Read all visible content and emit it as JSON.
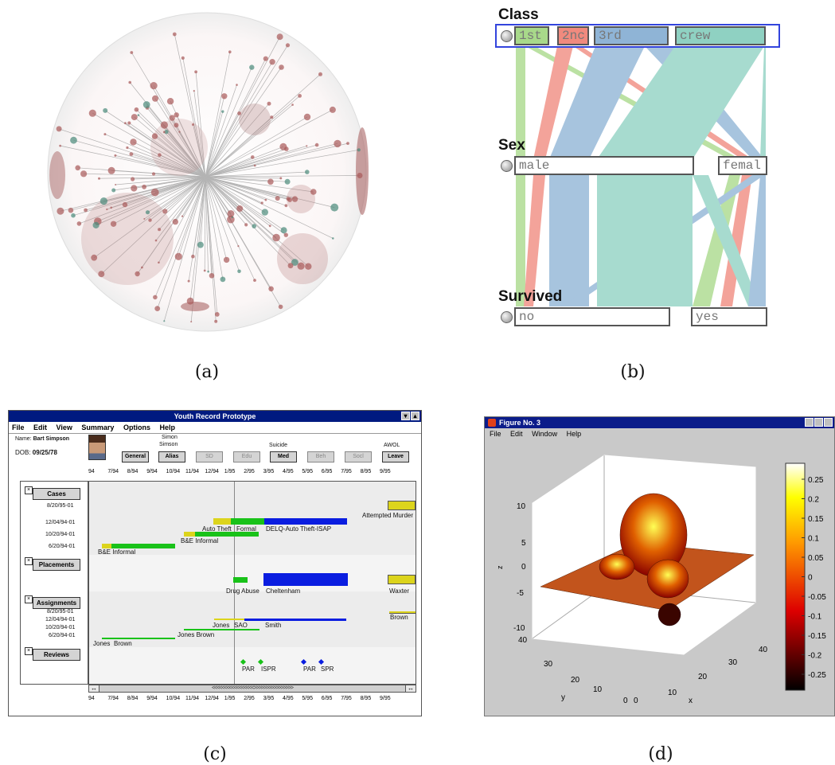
{
  "captions": {
    "a": "(a)",
    "b": "(b)",
    "c": "(c)",
    "d": "(d)"
  },
  "parallel_sets": {
    "dimensions": [
      {
        "name": "Class",
        "categories": [
          "1st",
          "2nc",
          "3rd",
          "crew"
        ]
      },
      {
        "name": "Sex",
        "categories": [
          "male",
          "femal"
        ]
      },
      {
        "name": "Survived",
        "categories": [
          "no",
          "yes"
        ]
      }
    ],
    "colors": {
      "1st": "#a8d98a",
      "2nc": "#f08a7e",
      "3rd": "#8fb4d6",
      "crew": "#8fd1c2"
    }
  },
  "youth_record": {
    "title": "Youth Record Prototype",
    "menu": [
      "File",
      "Edit",
      "View",
      "Summary",
      "Options",
      "Help"
    ],
    "name_label": "Name:",
    "name_value": "Bart Simpson",
    "dob_label": "DOB:",
    "dob_value": "09/25/78",
    "alias_text": [
      "Simon",
      "Simson"
    ],
    "notes": {
      "suicide": "Suicide",
      "awol": "AWOL"
    },
    "buttons": [
      {
        "label": "General",
        "enabled": true
      },
      {
        "label": "Alias",
        "enabled": true
      },
      {
        "label": "SD",
        "enabled": false
      },
      {
        "label": "Edu",
        "enabled": false
      },
      {
        "label": "Med",
        "enabled": true
      },
      {
        "label": "Beh",
        "enabled": false
      },
      {
        "label": "Socl",
        "enabled": false
      },
      {
        "label": "Leave",
        "enabled": true
      }
    ],
    "timeline_ticks": [
      "94",
      "7/94",
      "8/94",
      "9/94",
      "10/94",
      "11/94",
      "12/94",
      "1/95",
      "2/95",
      "3/95",
      "4/95",
      "5/95",
      "6/95",
      "7/95",
      "8/95",
      "9/95"
    ],
    "sections": {
      "cases": "Cases",
      "placements": "Placements",
      "assignments": "Assignments",
      "reviews": "Reviews"
    },
    "case_dates": [
      "8/20/95-01",
      "12/04/94-01",
      "10/20/94-01",
      "6/20/94-01"
    ],
    "assignment_dates": [
      "8/20/95-01",
      "12/04/94-01",
      "10/20/94-01",
      "6/20/94-01"
    ],
    "case_labels": {
      "attempted_murder": "Attempted Murder",
      "auto_theft": "Auto Theft",
      "formal": "Formal",
      "delq": "DELQ-Auto Theft-ISAP",
      "be_informal_1": "B&E Informal",
      "be_informal_2": "B&E Informal"
    },
    "placement_labels": {
      "drug_abuse": "Drug Abuse",
      "cheltenham": "Cheltenham",
      "waxter": "Waxter"
    },
    "assignment_labels": {
      "brown_1": "Brown",
      "jones_1": "Jones",
      "sao": "SAO",
      "smith": "Smith",
      "jones_brown": "Jones Brown",
      "jones_2": "Jones",
      "brown_2": "Brown"
    },
    "review_labels": {
      "par_1": "PAR",
      "ispr": "ISPR",
      "par_2": "PAR",
      "spr": "SPR"
    },
    "scroll_arrows": "<<<<<<<<<<<<<<<<<>>>>>>>>>>>>>>>>",
    "both_arrows": "↔"
  },
  "matlab_figure": {
    "window_title": "Figure No. 3",
    "menu": [
      "File",
      "Edit",
      "Window",
      "Help"
    ],
    "z_ticks": [
      "10",
      "5",
      "0",
      "-5",
      "-10"
    ],
    "y_ticks": [
      "40",
      "30",
      "20",
      "10",
      "0"
    ],
    "x_ticks": [
      "0",
      "10",
      "20",
      "30",
      "40"
    ],
    "zlabel": "z",
    "ylabel": "y",
    "xlabel": "x",
    "colorbar_ticks": [
      "0.25",
      "0.2",
      "0.15",
      "0.1",
      "0.05",
      "0",
      "-0.05",
      "-0.1",
      "-0.15",
      "-0.2",
      "-0.25"
    ]
  }
}
